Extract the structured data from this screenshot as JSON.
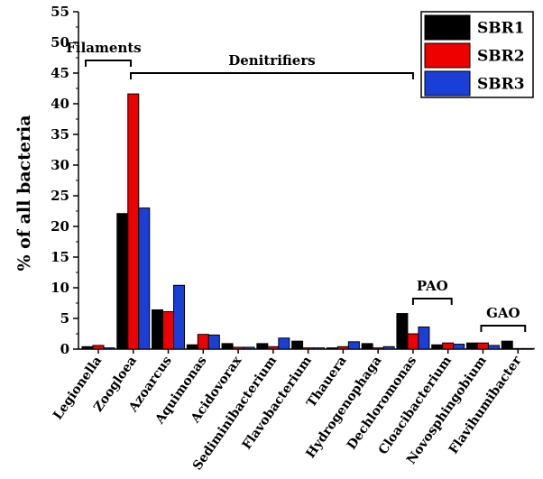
{
  "chart_data": {
    "type": "bar",
    "ylabel": "% of all bacteria",
    "xlabel": "",
    "ylim": [
      0,
      55
    ],
    "yticks": [
      0,
      5,
      10,
      15,
      20,
      25,
      30,
      35,
      40,
      45,
      50,
      55
    ],
    "legend_position": "top-right",
    "categories": [
      "Legionella",
      "Zoogloea",
      "Azoarcus",
      "Aquimonas",
      "Acidovorax",
      "Sediminibacterium",
      "Flavobacterium",
      "Thauera",
      "Hydrogenophaga",
      "Dechloromonas",
      "Cloacibacterium",
      "Novosphingobium",
      "Flavihumibacter"
    ],
    "series": [
      {
        "name": "SBR1",
        "color": "#000000",
        "values": [
          0.4,
          22.1,
          6.4,
          0.7,
          0.9,
          0.9,
          1.3,
          0.2,
          0.9,
          5.8,
          0.7,
          1.0,
          1.3
        ]
      },
      {
        "name": "SBR2",
        "color": "#ee0000",
        "values": [
          0.6,
          41.6,
          6.1,
          2.4,
          0.3,
          0.4,
          0.2,
          0.4,
          0.2,
          2.5,
          1.0,
          1.0,
          0.1
        ]
      },
      {
        "name": "SBR3",
        "color": "#1a3fd6",
        "values": [
          0.2,
          23.0,
          10.4,
          2.3,
          0.3,
          1.8,
          0.2,
          1.2,
          0.4,
          3.6,
          0.8,
          0.6,
          0.1
        ]
      }
    ],
    "annotations": [
      {
        "label": "Filaments",
        "from_category": 0,
        "to_category": 1
      },
      {
        "label": "Denitrifiers",
        "from_category": 1,
        "to_category": 9
      },
      {
        "label": "PAO",
        "from_category": 9,
        "to_category": 10
      },
      {
        "label": "GAO",
        "from_category": 11,
        "to_category": 12
      }
    ]
  }
}
